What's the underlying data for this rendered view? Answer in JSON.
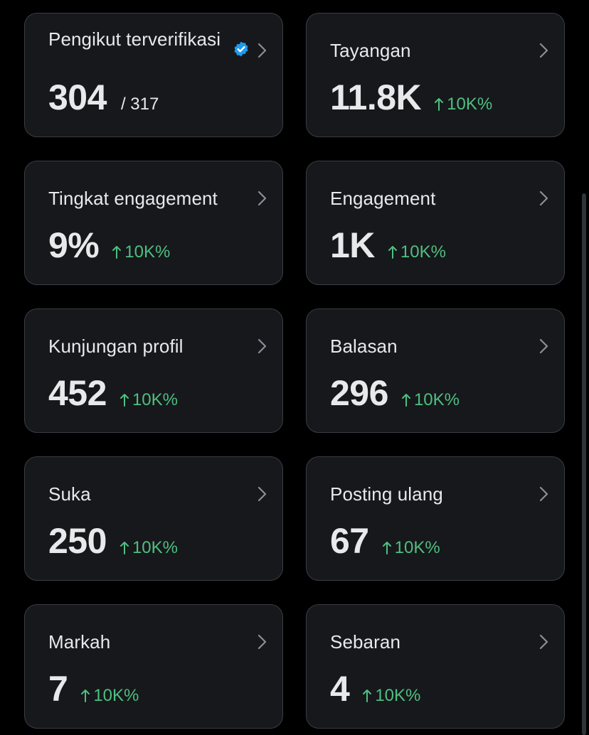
{
  "cards": [
    {
      "label": "Pengikut terverifikasi",
      "value": "304",
      "total": "/ 317",
      "verified": true
    },
    {
      "label": "Tayangan",
      "value": "11.8K",
      "trend": "10K%"
    },
    {
      "label": "Tingkat engagement",
      "value": "9%",
      "trend": "10K%"
    },
    {
      "label": "Engagement",
      "value": "1K",
      "trend": "10K%"
    },
    {
      "label": "Kunjungan profil",
      "value": "452",
      "trend": "10K%"
    },
    {
      "label": "Balasan",
      "value": "296",
      "trend": "10K%"
    },
    {
      "label": "Suka",
      "value": "250",
      "trend": "10K%"
    },
    {
      "label": "Posting ulang",
      "value": "67",
      "trend": "10K%"
    },
    {
      "label": "Markah",
      "value": "7",
      "trend": "10K%"
    },
    {
      "label": "Sebaran",
      "value": "4",
      "trend": "10K%"
    }
  ],
  "icons": {
    "verified": "verified-badge-icon",
    "chevron": "chevron-right-icon",
    "trend": "arrow-up-icon"
  },
  "colors": {
    "background": "#000000",
    "card": "#16181c",
    "border": "#3a3d42",
    "text": "#e7e9ea",
    "positive": "#4fbf7f",
    "verified": "#1d9bf0"
  }
}
